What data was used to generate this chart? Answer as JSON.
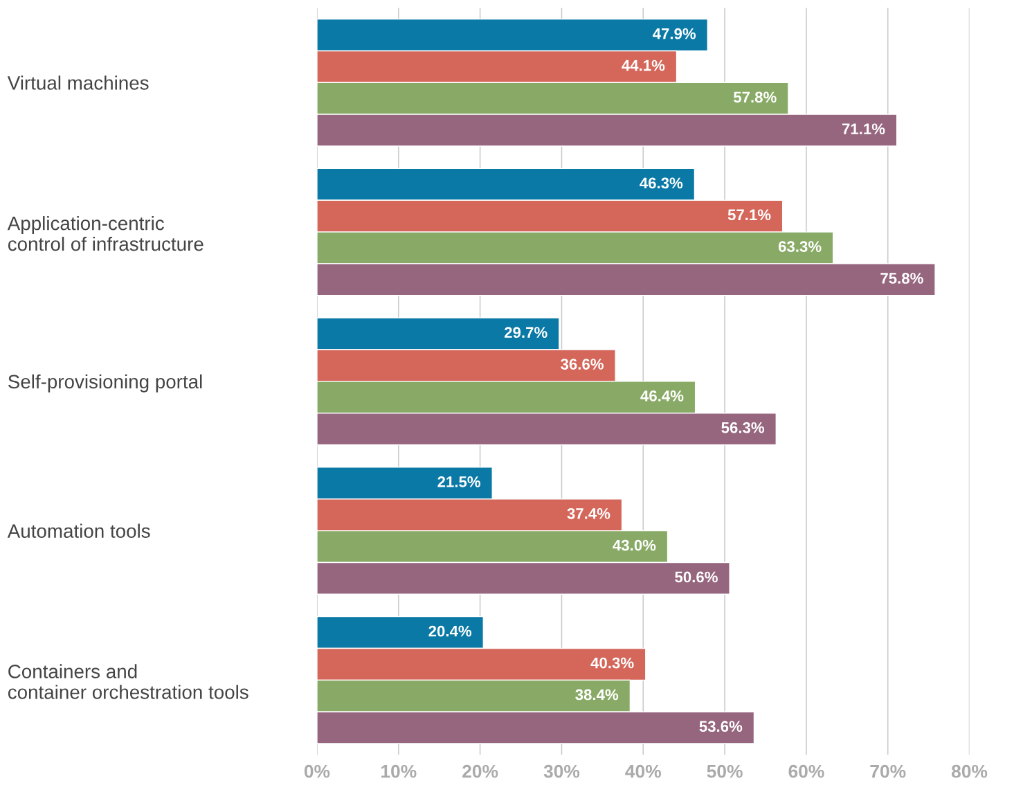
{
  "chart_data": {
    "type": "bar",
    "orientation": "horizontal",
    "categories": [
      "Virtual machines",
      "Application-centric\ncontrol of infrastructure",
      "Self-provisioning portal",
      "Automation tools",
      "Containers and\ncontainer orchestration tools"
    ],
    "series": [
      {
        "color": "#0a79a6",
        "values": [
          47.9,
          46.3,
          29.7,
          21.5,
          20.4
        ],
        "value_labels": [
          "47.9%",
          "46.3%",
          "29.7%",
          "21.5%",
          "20.4%"
        ]
      },
      {
        "color": "#d4665a",
        "values": [
          44.1,
          57.1,
          36.6,
          37.4,
          40.3
        ],
        "value_labels": [
          "44.1%",
          "57.1%",
          "36.6%",
          "37.4%",
          "40.3%"
        ]
      },
      {
        "color": "#89aa66",
        "values": [
          57.8,
          63.3,
          46.4,
          43.0,
          38.4
        ],
        "value_labels": [
          "57.8%",
          "63.3%",
          "46.4%",
          "43.0%",
          "38.4%"
        ]
      },
      {
        "color": "#96657e",
        "values": [
          71.1,
          75.8,
          56.3,
          50.6,
          53.6
        ],
        "value_labels": [
          "71.1%",
          "75.8%",
          "56.3%",
          "50.6%",
          "53.6%"
        ]
      }
    ],
    "xlim": [
      0,
      80
    ],
    "xticks": [
      {
        "value": 0,
        "label": "0%"
      },
      {
        "value": 10,
        "label": "10%"
      },
      {
        "value": 20,
        "label": "20%"
      },
      {
        "value": 30,
        "label": "30%"
      },
      {
        "value": 40,
        "label": "40%"
      },
      {
        "value": 50,
        "label": "50%"
      },
      {
        "value": 60,
        "label": "60%"
      },
      {
        "value": 70,
        "label": "70%"
      },
      {
        "value": 80,
        "label": "80%"
      }
    ],
    "grid": "x",
    "legend": false
  }
}
